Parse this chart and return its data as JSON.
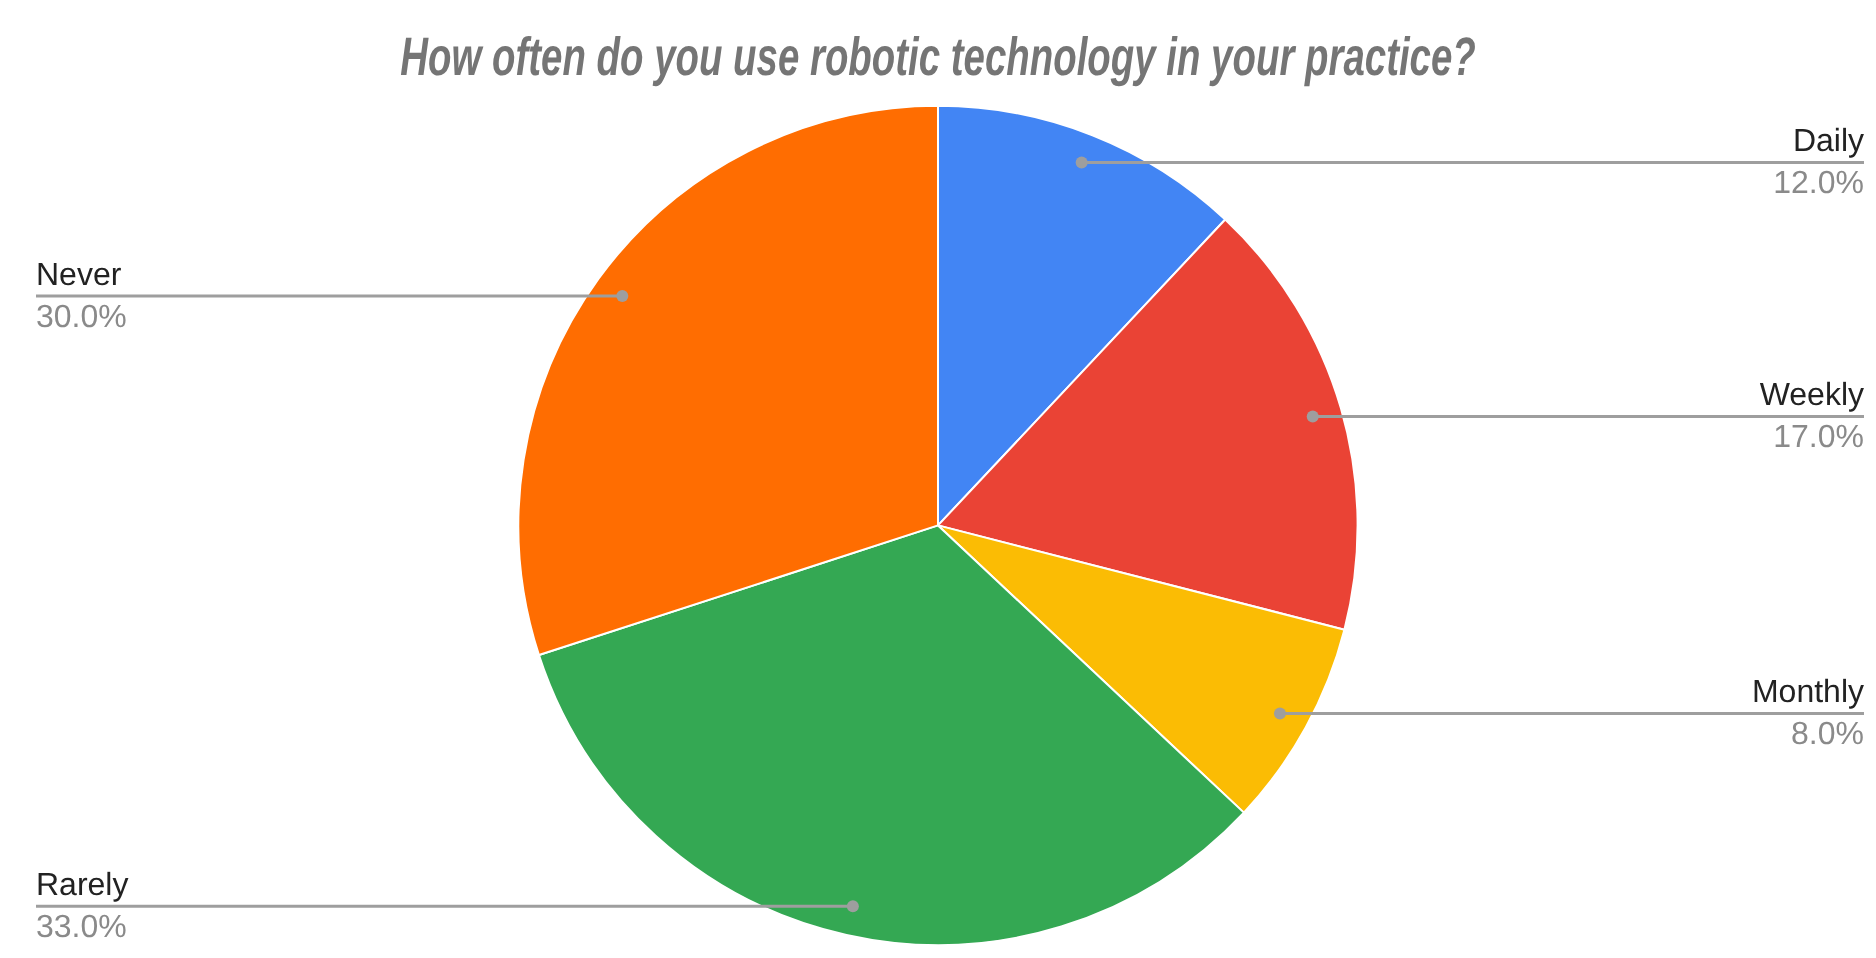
{
  "chart_data": {
    "type": "pie",
    "title": "How often do you use robotic technology in your practice?",
    "categories": [
      "Daily",
      "Weekly",
      "Monthly",
      "Rarely",
      "Never"
    ],
    "values": [
      12,
      17,
      8,
      33,
      30
    ],
    "value_labels": [
      "12.0%",
      "17.0%",
      "8.0%",
      "33.0%",
      "30.0%"
    ],
    "colors": [
      "#4285f4",
      "#ea4335",
      "#fbbc04",
      "#34a853",
      "#ff6d01"
    ],
    "legend": false
  }
}
